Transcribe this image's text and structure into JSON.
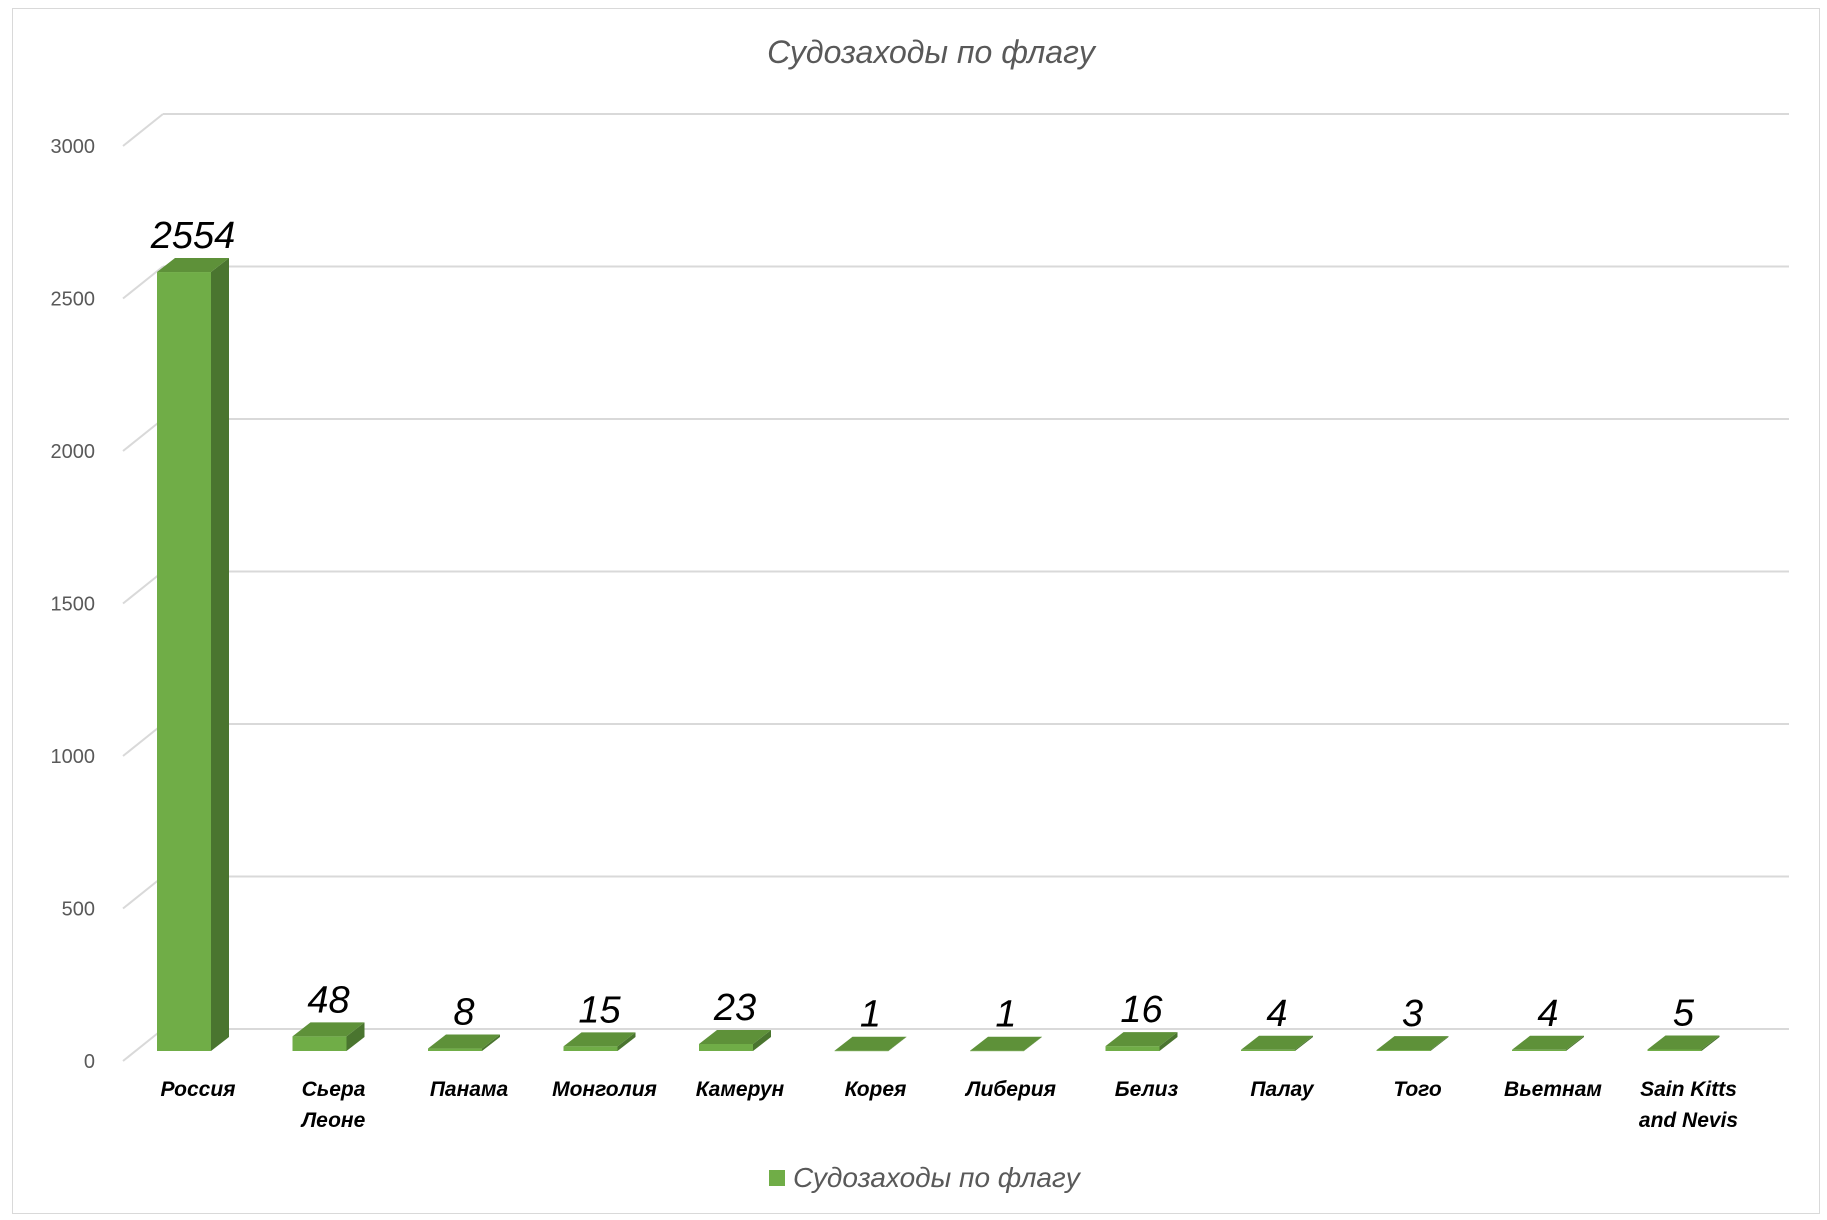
{
  "chart_data": {
    "type": "bar",
    "title": "Судозаходы по флагу",
    "xlabel": "",
    "ylabel": "",
    "categories": [
      [
        "Россия"
      ],
      [
        "Сьера",
        "Леоне"
      ],
      [
        "Панама"
      ],
      [
        "Монголия"
      ],
      [
        "Камерун"
      ],
      [
        "Корея"
      ],
      [
        "Либерия"
      ],
      [
        "Белиз"
      ],
      [
        "Палау"
      ],
      [
        "Того"
      ],
      [
        "Вьетнам"
      ],
      [
        "Sain Kitts",
        "and  Nevis"
      ]
    ],
    "series": [
      {
        "name": "Судозаходы по флагу",
        "values": [
          2554,
          48,
          8,
          15,
          23,
          1,
          1,
          16,
          4,
          3,
          4,
          5
        ]
      }
    ],
    "ylim": [
      0,
      3000
    ],
    "yticks": [
      0,
      500,
      1000,
      1500,
      2000,
      2500,
      3000
    ],
    "grid": true,
    "legend_position": "bottom",
    "style": "3d-column",
    "colors": {
      "bar_front": "#70ad47",
      "bar_side": "#4a752f",
      "bar_top": "#5e9139",
      "grid": "#d9d9d9"
    }
  }
}
